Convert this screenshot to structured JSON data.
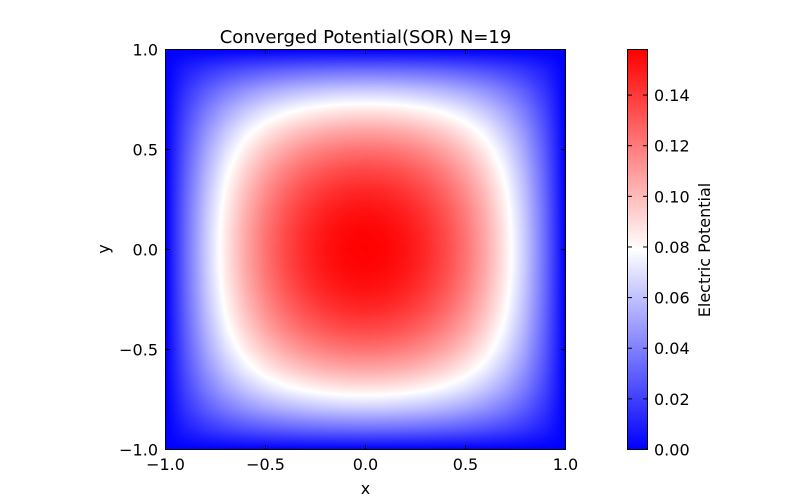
{
  "chart_data": {
    "type": "heatmap",
    "title": "Converged Potential(SOR) N=19",
    "xlabel": "x",
    "ylabel": "y",
    "xlim": [
      -1.0,
      1.0
    ],
    "ylim": [
      -1.0,
      1.0
    ],
    "x_ticks": [
      "−1.0",
      "−0.5",
      "0.0",
      "0.5",
      "1.0"
    ],
    "y_ticks": [
      "1.0",
      "0.5",
      "0.0",
      "−0.5",
      "−1.0"
    ],
    "grid_size": 19,
    "value_range": [
      0.0,
      0.158
    ],
    "peak_value": 0.158,
    "peak_location": [
      0.0,
      0.0
    ],
    "boundary_value": 0.0,
    "colormap": "bwr",
    "colors": {
      "low": "#0000ff",
      "mid": "#ffffff",
      "high": "#ff0000"
    },
    "grid": false,
    "colorbar": {
      "label": "Electric Potential",
      "position": "right",
      "ticks": [
        "0.00",
        "0.02",
        "0.04",
        "0.06",
        "0.08",
        "0.10",
        "0.12",
        "0.14"
      ],
      "tick_values": [
        0.0,
        0.02,
        0.04,
        0.06,
        0.08,
        0.1,
        0.12,
        0.14
      ]
    }
  }
}
